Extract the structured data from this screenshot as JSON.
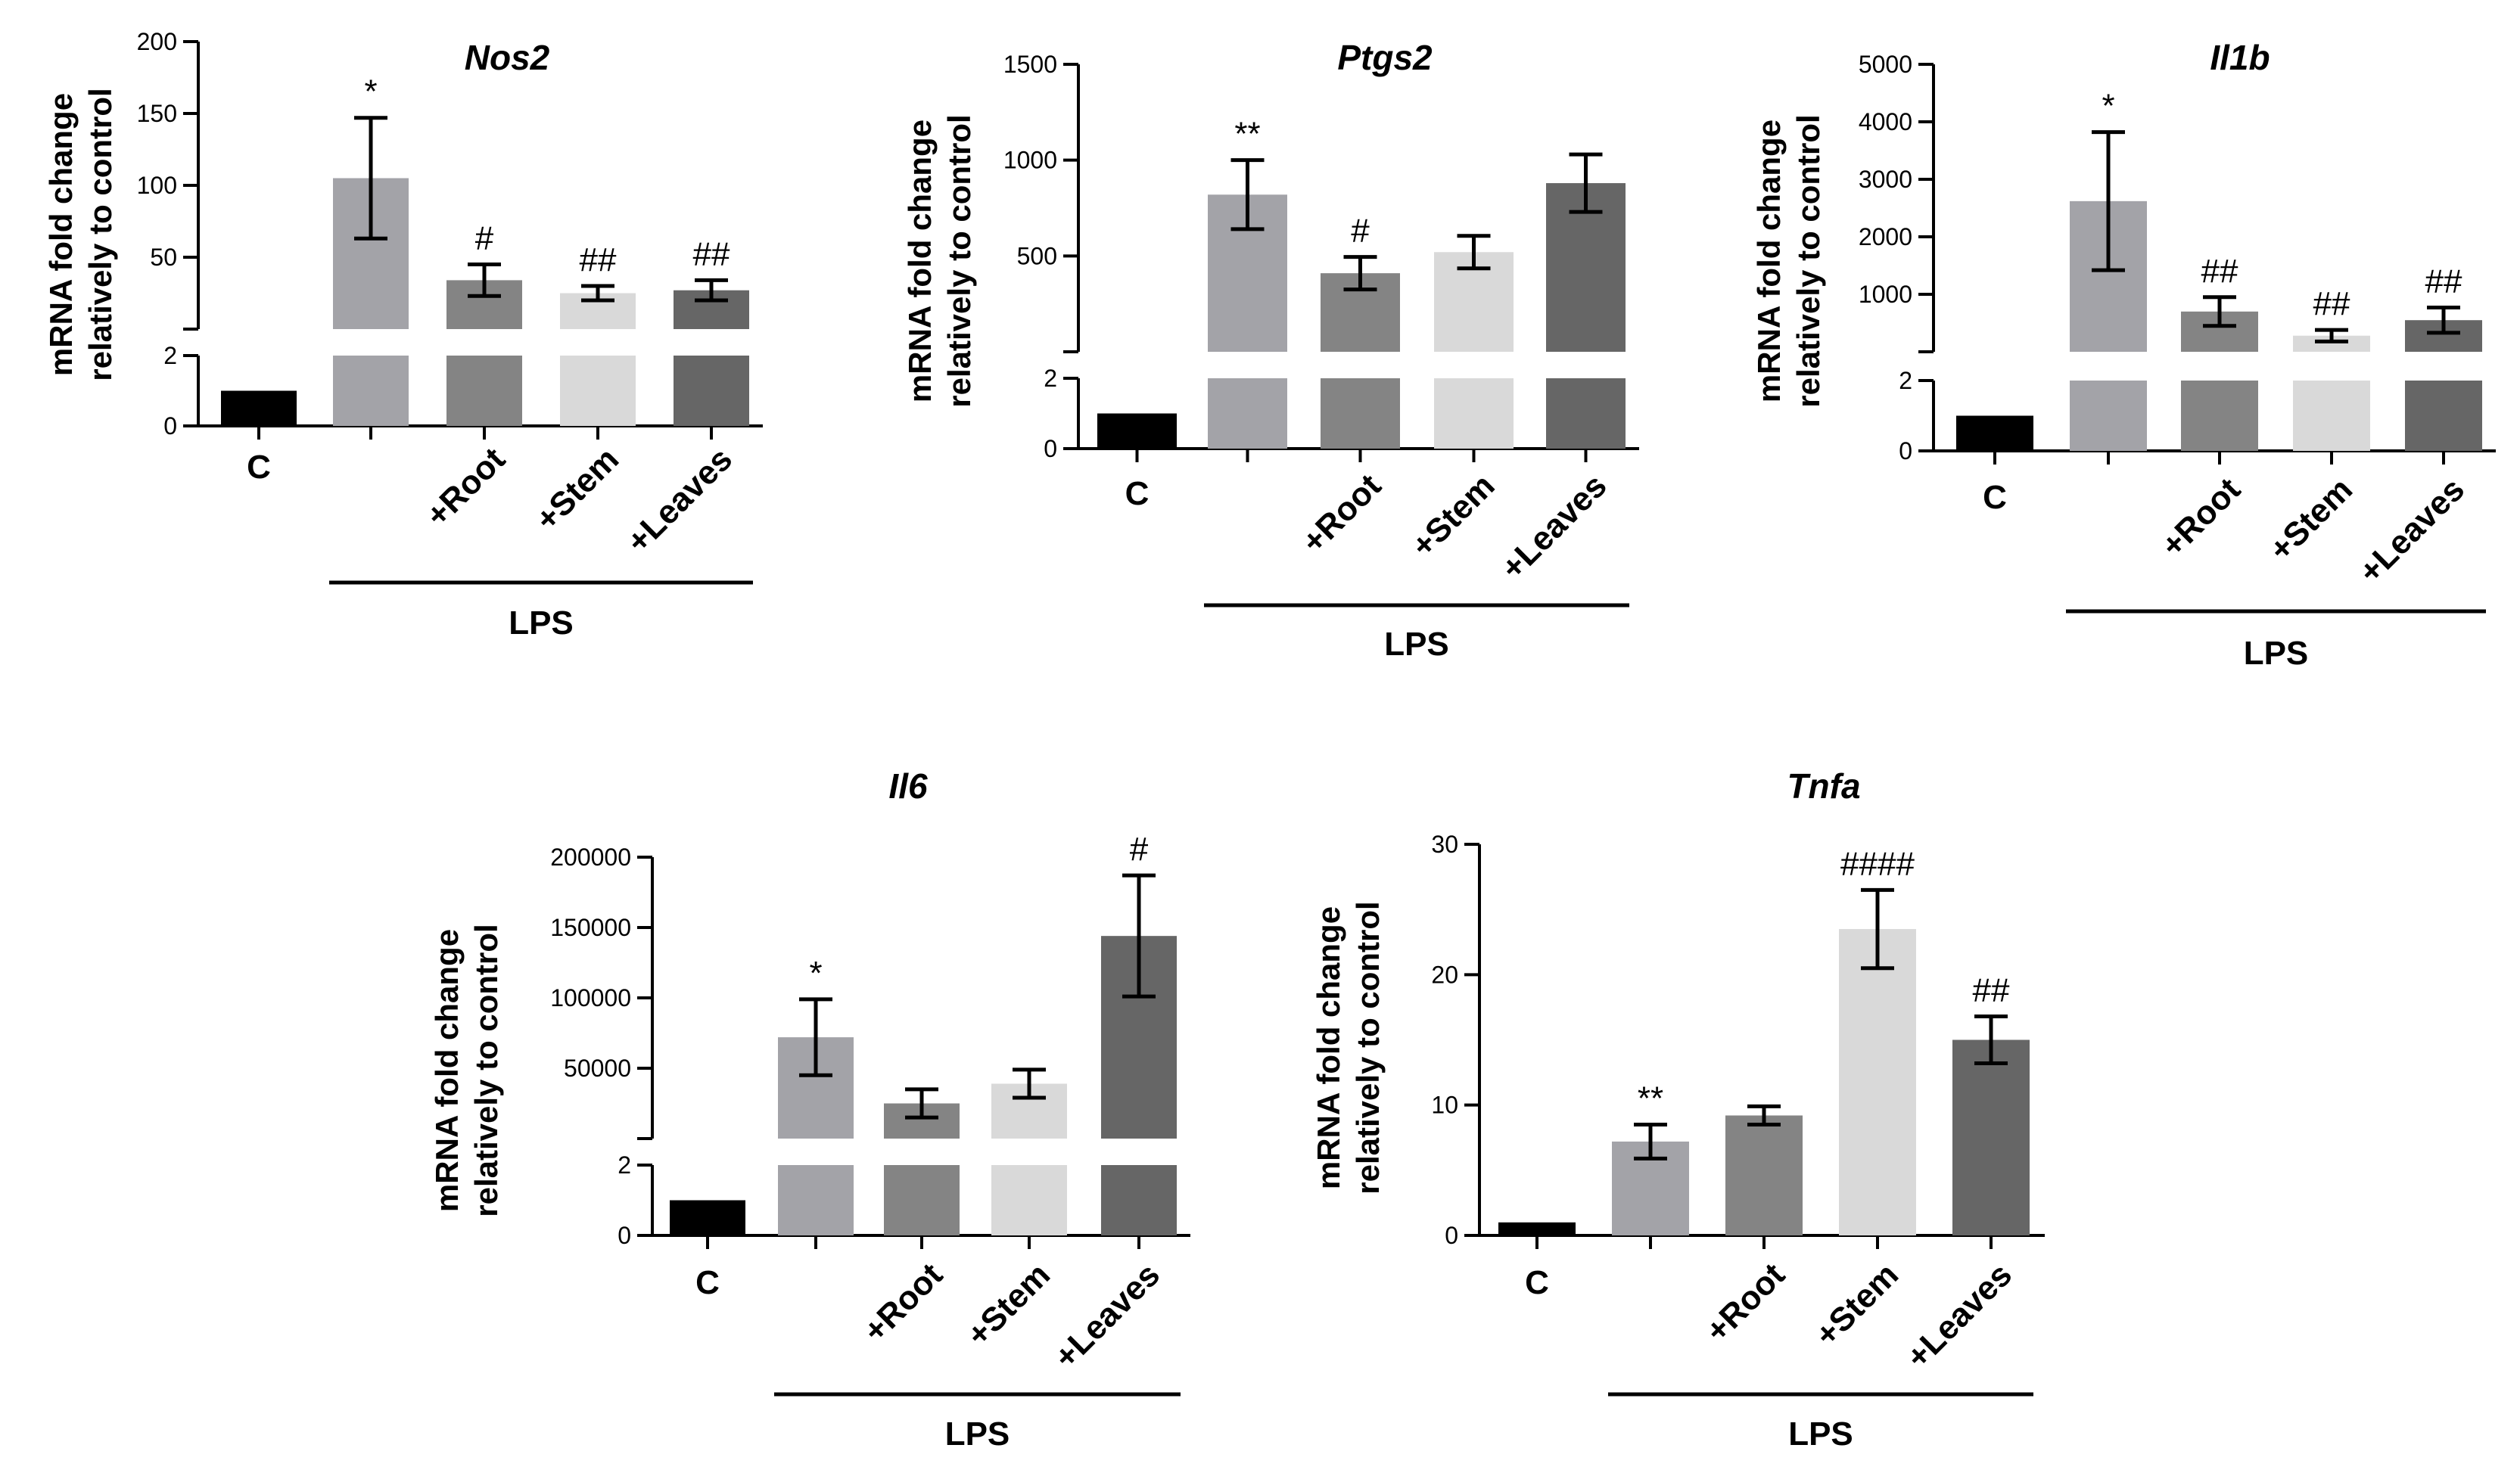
{
  "figure": {
    "group_label": "LPS",
    "ylabel_line1": "mRNA fold change",
    "ylabel_line2": "relatively to control"
  },
  "chart_data": [
    {
      "type": "bar",
      "title": "Nos2",
      "ylabel": "mRNA fold change relatively to control",
      "axis_break": true,
      "lower_range": [
        0,
        2
      ],
      "upper_range": [
        0,
        200
      ],
      "lower_ticks": [
        0,
        2
      ],
      "upper_ticks": [
        50,
        100,
        150,
        200
      ],
      "categories": [
        "C",
        "",
        "+Root",
        "+Stem",
        "+Leaves"
      ],
      "values": [
        1,
        105,
        34,
        25,
        27
      ],
      "errors": [
        0,
        42,
        11,
        5,
        7
      ],
      "significance": [
        "",
        "*",
        "#",
        "##",
        "##"
      ],
      "colors": [
        "#000000",
        "#a3a3a8",
        "#848484",
        "#d9d9d9",
        "#666666"
      ],
      "group_label": "LPS",
      "group_categories": [
        1,
        4
      ]
    },
    {
      "type": "bar",
      "title": "Ptgs2",
      "ylabel": "mRNA fold change relatively to control",
      "axis_break": true,
      "lower_range": [
        0,
        2
      ],
      "upper_range": [
        0,
        1500
      ],
      "lower_ticks": [
        0,
        2
      ],
      "upper_ticks": [
        500,
        1000,
        1500
      ],
      "categories": [
        "C",
        "",
        "+Root",
        "+Stem",
        "+Leaves"
      ],
      "values": [
        1,
        820,
        410,
        520,
        880
      ],
      "errors": [
        0,
        180,
        85,
        85,
        150
      ],
      "significance": [
        "",
        "**",
        "#",
        "",
        ""
      ],
      "colors": [
        "#000000",
        "#a3a3a8",
        "#848484",
        "#d9d9d9",
        "#666666"
      ],
      "group_label": "LPS",
      "group_categories": [
        1,
        4
      ]
    },
    {
      "type": "bar",
      "title": "Il1b",
      "ylabel": "mRNA fold change relatively to control",
      "axis_break": true,
      "lower_range": [
        0,
        2
      ],
      "upper_range": [
        0,
        5000
      ],
      "lower_ticks": [
        0,
        2
      ],
      "upper_ticks": [
        1000,
        2000,
        3000,
        4000,
        5000
      ],
      "categories": [
        "C",
        "",
        "+Root",
        "+Stem",
        "+Leaves"
      ],
      "values": [
        1,
        2620,
        700,
        280,
        550
      ],
      "errors": [
        0,
        1200,
        250,
        100,
        220
      ],
      "significance": [
        "",
        "*",
        "##",
        "##",
        "##"
      ],
      "colors": [
        "#000000",
        "#a3a3a8",
        "#848484",
        "#d9d9d9",
        "#666666"
      ],
      "group_label": "LPS",
      "group_categories": [
        1,
        4
      ]
    },
    {
      "type": "bar",
      "title": "Il6",
      "ylabel": "mRNA fold change relatively to control",
      "axis_break": true,
      "lower_range": [
        0,
        2
      ],
      "upper_range": [
        0,
        200000
      ],
      "lower_ticks": [
        0,
        2
      ],
      "upper_ticks": [
        50000,
        100000,
        150000,
        200000
      ],
      "categories": [
        "C",
        "",
        "+Root",
        "+Stem",
        "+Leaves"
      ],
      "values": [
        1,
        72000,
        25000,
        39000,
        144000
      ],
      "errors": [
        0,
        27000,
        10000,
        10000,
        43000
      ],
      "significance": [
        "",
        "*",
        "",
        "",
        "#"
      ],
      "colors": [
        "#000000",
        "#a3a3a8",
        "#848484",
        "#d9d9d9",
        "#666666"
      ],
      "group_label": "LPS",
      "group_categories": [
        1,
        4
      ]
    },
    {
      "type": "bar",
      "title": "Tnfa",
      "ylabel": "mRNA fold change relatively to control",
      "axis_break": false,
      "ylim": [
        0,
        30
      ],
      "ticks": [
        0,
        10,
        20,
        30
      ],
      "categories": [
        "C",
        "",
        "+Root",
        "+Stem",
        "+Leaves"
      ],
      "values": [
        1,
        7.2,
        9.2,
        23.5,
        15
      ],
      "errors": [
        0,
        1.3,
        0.7,
        3,
        1.8
      ],
      "significance": [
        "",
        "**",
        "",
        "####",
        "##"
      ],
      "colors": [
        "#000000",
        "#a3a3a8",
        "#848484",
        "#d9d9d9",
        "#666666"
      ],
      "group_label": "LPS",
      "group_categories": [
        1,
        4
      ]
    }
  ]
}
